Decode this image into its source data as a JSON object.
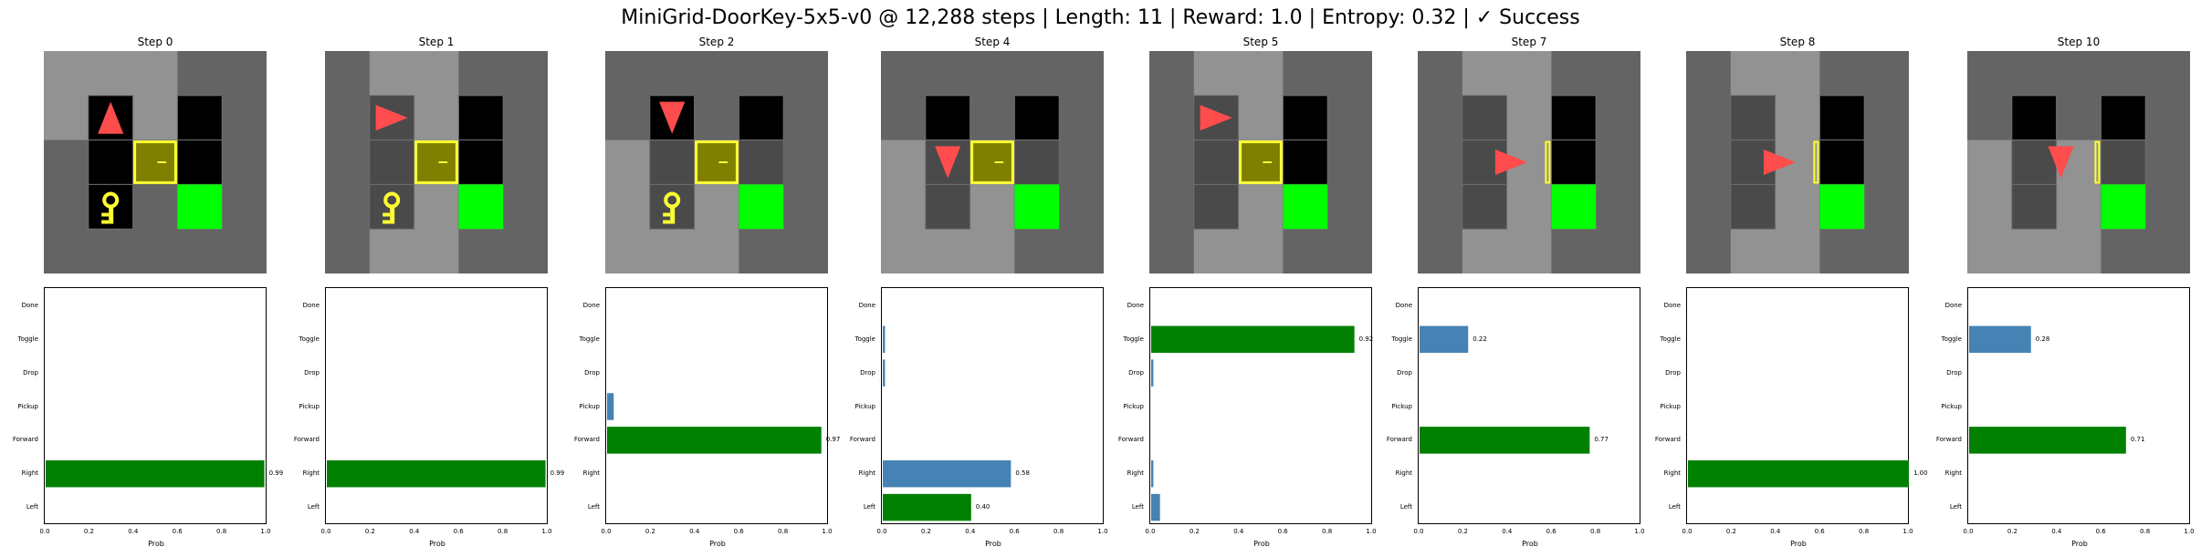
{
  "title": "MiniGrid-DoorKey-5x5-v0 @ 12,288 steps | Length: 11 | Reward: 1.0 | Entropy: 0.32 | ✓ Success",
  "colors": {
    "chosen": "#008000",
    "other": "#4682b4",
    "wall": "#646464",
    "floor": "#000000",
    "visible_floor": "#4a4a4a",
    "agent": "#ff4c4c",
    "door": "#ffff33",
    "key": "#ffff33",
    "goal": "#00ff00"
  },
  "chart_data": [
    {
      "type": "bar",
      "orientation": "horizontal",
      "title": "Step 0",
      "categories": [
        "Left",
        "Right",
        "Forward",
        "Pickup",
        "Drop",
        "Toggle",
        "Done"
      ],
      "values": [
        0.0,
        0.99,
        0.0,
        0.0,
        0.0,
        0.0,
        0.0
      ],
      "chosen": "Right",
      "value_labels": {
        "Right": "0.99"
      },
      "xlabel": "Prob",
      "xlim": [
        0,
        1
      ],
      "xticks": [
        "0.0",
        "0.2",
        "0.4",
        "0.6",
        "0.8",
        "1.0"
      ],
      "scene": {
        "agent": "up",
        "door": "locked",
        "key": true,
        "view": "top"
      }
    },
    {
      "type": "bar",
      "orientation": "horizontal",
      "title": "Step 1",
      "categories": [
        "Left",
        "Right",
        "Forward",
        "Pickup",
        "Drop",
        "Toggle",
        "Done"
      ],
      "values": [
        0.0,
        0.99,
        0.0,
        0.0,
        0.0,
        0.0,
        0.0
      ],
      "chosen": "Right",
      "value_labels": {
        "Right": "0.99"
      },
      "xlabel": "Prob",
      "xlim": [
        0,
        1
      ],
      "xticks": [
        "0.0",
        "0.2",
        "0.4",
        "0.6",
        "0.8",
        "1.0"
      ],
      "scene": {
        "agent": "right",
        "door": "locked",
        "key": true,
        "view": "right"
      }
    },
    {
      "type": "bar",
      "orientation": "horizontal",
      "title": "Step 2",
      "categories": [
        "Left",
        "Right",
        "Forward",
        "Pickup",
        "Drop",
        "Toggle",
        "Done"
      ],
      "values": [
        0.0,
        0.0,
        0.97,
        0.03,
        0.0,
        0.0,
        0.0
      ],
      "chosen": "Forward",
      "value_labels": {
        "Forward": "0.97"
      },
      "xlabel": "Prob",
      "xlim": [
        0,
        1
      ],
      "xticks": [
        "0.0",
        "0.2",
        "0.4",
        "0.6",
        "0.8",
        "1.0"
      ],
      "scene": {
        "agent": "down",
        "door": "locked",
        "key": true,
        "view": "down"
      }
    },
    {
      "type": "bar",
      "orientation": "horizontal",
      "title": "Step 4",
      "categories": [
        "Left",
        "Right",
        "Forward",
        "Pickup",
        "Drop",
        "Toggle",
        "Done"
      ],
      "values": [
        0.4,
        0.58,
        0.0,
        0.0,
        0.01,
        0.01,
        0.0
      ],
      "chosen": "Left",
      "value_labels": {
        "Left": "0.40",
        "Right": "0.58"
      },
      "xlabel": "Prob",
      "xlim": [
        0,
        1
      ],
      "xticks": [
        "0.0",
        "0.2",
        "0.4",
        "0.6",
        "0.8",
        "1.0"
      ],
      "scene": {
        "agent": "down",
        "door": "locked",
        "key": false,
        "view": "down"
      }
    },
    {
      "type": "bar",
      "orientation": "horizontal",
      "title": "Step 5",
      "categories": [
        "Left",
        "Right",
        "Forward",
        "Pickup",
        "Drop",
        "Toggle",
        "Done"
      ],
      "values": [
        0.04,
        0.01,
        0.0,
        0.0,
        0.01,
        0.92,
        0.0
      ],
      "chosen": "Toggle",
      "value_labels": {
        "Toggle": "0.92"
      },
      "xlabel": "Prob",
      "xlim": [
        0,
        1
      ],
      "xticks": [
        "0.0",
        "0.2",
        "0.4",
        "0.6",
        "0.8",
        "1.0"
      ],
      "scene": {
        "agent": "right",
        "door": "locked",
        "key": false,
        "view": "right"
      }
    },
    {
      "type": "bar",
      "orientation": "horizontal",
      "title": "Step 7",
      "categories": [
        "Left",
        "Right",
        "Forward",
        "Pickup",
        "Drop",
        "Toggle",
        "Done"
      ],
      "values": [
        0.0,
        0.0,
        0.77,
        0.0,
        0.0,
        0.22,
        0.0
      ],
      "chosen": "Forward",
      "value_labels": {
        "Forward": "0.77",
        "Toggle": "0.22"
      },
      "xlabel": "Prob",
      "xlim": [
        0,
        1
      ],
      "xticks": [
        "0.0",
        "0.2",
        "0.4",
        "0.6",
        "0.8",
        "1.0"
      ],
      "scene": {
        "agent": "right",
        "door": "open",
        "key": false,
        "view": "right"
      }
    },
    {
      "type": "bar",
      "orientation": "horizontal",
      "title": "Step 8",
      "categories": [
        "Left",
        "Right",
        "Forward",
        "Pickup",
        "Drop",
        "Toggle",
        "Done"
      ],
      "values": [
        0.0,
        1.0,
        0.0,
        0.0,
        0.0,
        0.0,
        0.0
      ],
      "chosen": "Right",
      "value_labels": {
        "Right": "1.00"
      },
      "xlabel": "Prob",
      "xlim": [
        0,
        1
      ],
      "xticks": [
        "0.0",
        "0.2",
        "0.4",
        "0.6",
        "0.8",
        "1.0"
      ],
      "scene": {
        "agent": "right",
        "door": "open",
        "key": false,
        "view": "right"
      }
    },
    {
      "type": "bar",
      "orientation": "horizontal",
      "title": "Step 10",
      "categories": [
        "Left",
        "Right",
        "Forward",
        "Pickup",
        "Drop",
        "Toggle",
        "Done"
      ],
      "values": [
        0.0,
        0.0,
        0.71,
        0.0,
        0.0,
        0.28,
        0.0
      ],
      "chosen": "Forward",
      "value_labels": {
        "Forward": "0.71",
        "Toggle": "0.28"
      },
      "xlabel": "Prob",
      "xlim": [
        0,
        1
      ],
      "xticks": [
        "0.0",
        "0.2",
        "0.4",
        "0.6",
        "0.8",
        "1.0"
      ],
      "scene": {
        "agent": "down",
        "door": "open",
        "key": false,
        "view": "down"
      }
    }
  ]
}
